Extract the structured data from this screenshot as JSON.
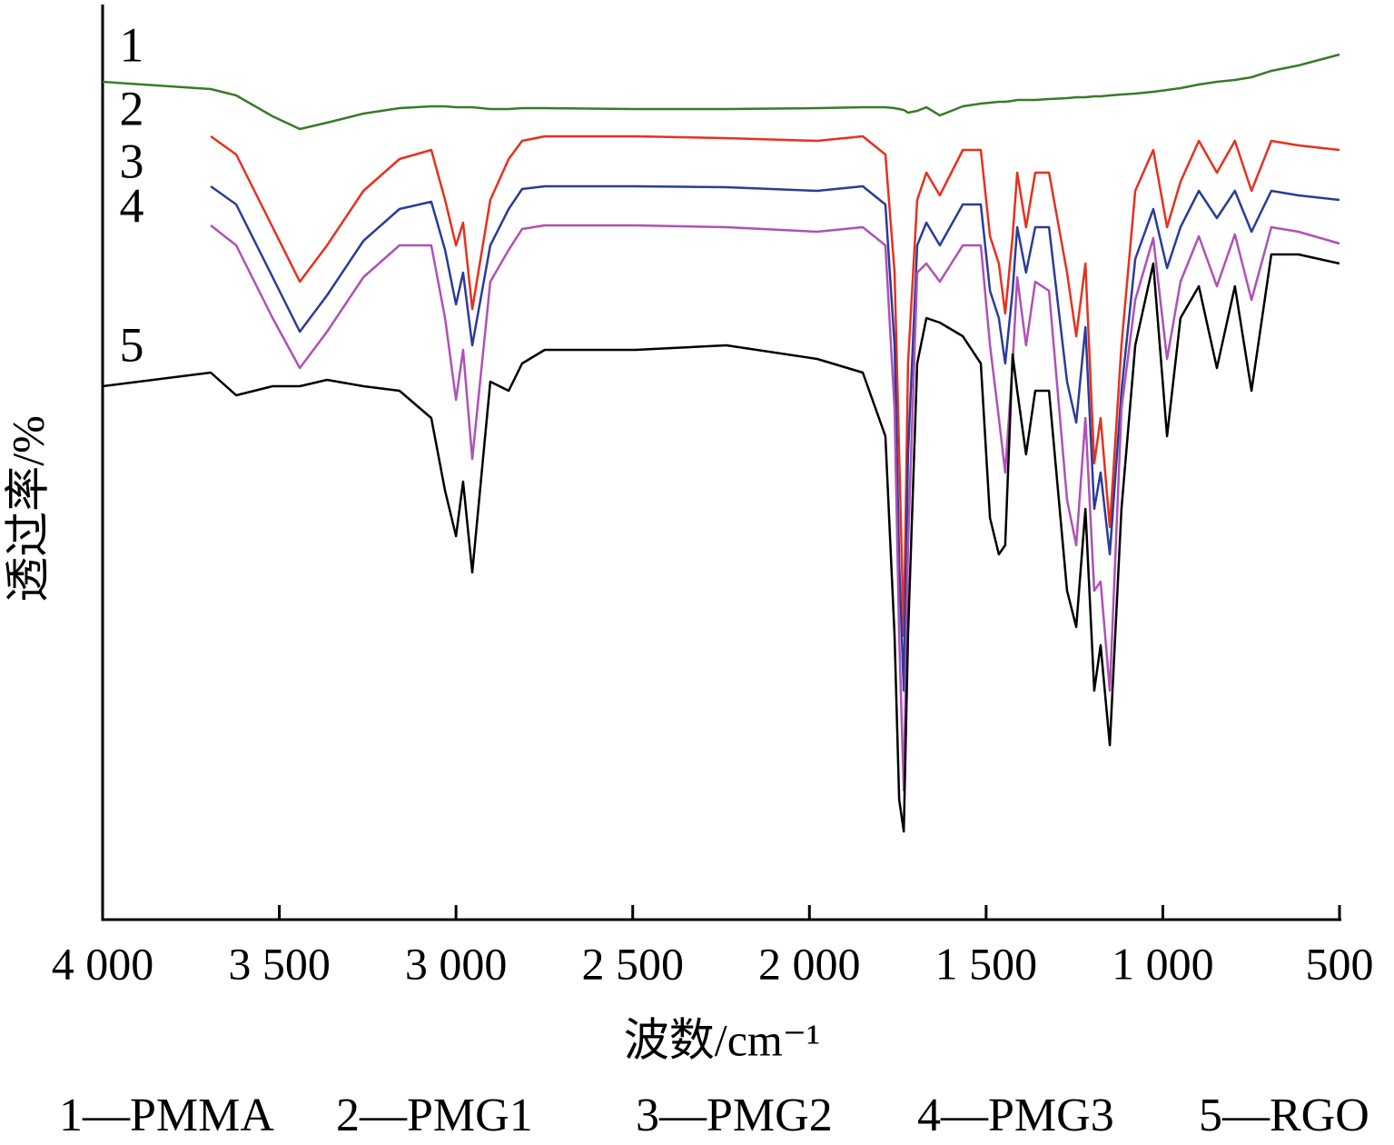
{
  "chart_data": {
    "type": "line",
    "xlabel": "波数/cm⁻¹",
    "ylabel": "透过率/%",
    "xlim": [
      4000,
      500
    ],
    "ylim": [
      0,
      100
    ],
    "xticks": [
      {
        "value": 4000,
        "label": "4 000"
      },
      {
        "value": 3500,
        "label": "3 500"
      },
      {
        "value": 3000,
        "label": "3 000"
      },
      {
        "value": 2500,
        "label": "2 500"
      },
      {
        "value": 2000,
        "label": "2 000"
      },
      {
        "value": 1500,
        "label": "1 500"
      },
      {
        "value": 1000,
        "label": "1 000"
      },
      500
    ],
    "x": [
      4000,
      3694,
      3622,
      3519,
      3442,
      3365,
      3262,
      3160,
      3070,
      3031,
      3000,
      2980,
      2954,
      2903,
      2851,
      2813,
      2749,
      2492,
      2235,
      1978,
      1849,
      1785,
      1759,
      1746,
      1733,
      1721,
      1695,
      1669,
      1631,
      1566,
      1515,
      1489,
      1464,
      1446,
      1425,
      1412,
      1387,
      1361,
      1322,
      1271,
      1245,
      1219,
      1194,
      1176,
      1150,
      1117,
      1078,
      1027,
      988,
      950,
      898,
      847,
      796,
      749,
      693,
      616,
      500
    ],
    "series": [
      {
        "name": "1—PMMA",
        "label": "1",
        "color": "#3a7a2a",
        "values": [
          92.0,
          91.2,
          90.5,
          88.2,
          86.8,
          87.5,
          88.5,
          89.1,
          89.3,
          89.3,
          89.2,
          89.2,
          89.2,
          89.0,
          89.0,
          89.1,
          89.1,
          89.0,
          89.0,
          89.1,
          89.2,
          89.2,
          89.1,
          89.0,
          88.9,
          88.6,
          88.8,
          89.2,
          88.3,
          89.3,
          89.6,
          89.7,
          89.8,
          89.8,
          89.9,
          90.0,
          90.0,
          90.0,
          90.1,
          90.2,
          90.3,
          90.3,
          90.4,
          90.4,
          90.5,
          90.6,
          90.7,
          90.9,
          91.1,
          91.3,
          91.7,
          92.0,
          92.2,
          92.5,
          93.2,
          93.8,
          95.0
        ]
      },
      {
        "name": "2—PMG1",
        "label": "2",
        "color": "#e8301e",
        "values": [
          null,
          86.0,
          84.0,
          76.0,
          70.0,
          74.0,
          80.0,
          83.5,
          84.5,
          79.0,
          74.0,
          76.5,
          67.0,
          79.0,
          83.5,
          85.5,
          86.0,
          86.0,
          85.8,
          85.5,
          86.0,
          84.0,
          71.0,
          51.0,
          31.0,
          61.0,
          79.0,
          82.0,
          79.5,
          84.5,
          84.5,
          75.0,
          72.0,
          66.5,
          75.0,
          82.0,
          76.0,
          82.0,
          82.0,
          71.0,
          64.0,
          72.0,
          50.0,
          55.0,
          43.0,
          63.0,
          80.0,
          84.5,
          76.0,
          81.0,
          85.5,
          82.0,
          85.5,
          80.0,
          85.5,
          85.0,
          84.5
        ]
      },
      {
        "name": "3—PMG2",
        "label": "3",
        "color": "#2a3c9a",
        "values": [
          null,
          80.5,
          78.5,
          70.5,
          64.5,
          68.5,
          74.5,
          78.0,
          78.8,
          73.5,
          67.5,
          71.0,
          63.0,
          74.0,
          78.0,
          80.2,
          80.5,
          80.5,
          80.4,
          80.0,
          80.5,
          78.5,
          63.0,
          39.0,
          25.0,
          51.0,
          74.0,
          76.5,
          74.0,
          78.5,
          78.5,
          69.0,
          66.0,
          61.0,
          69.0,
          76.0,
          71.0,
          76.0,
          76.0,
          59.0,
          54.5,
          65.0,
          45.0,
          49.0,
          40.0,
          58.0,
          72.5,
          78.0,
          71.5,
          76.0,
          80.0,
          77.0,
          80.0,
          75.5,
          80.0,
          79.5,
          79.0
        ]
      },
      {
        "name": "4—PMG3",
        "label": "4",
        "color": "#b050b8",
        "values": [
          null,
          76.2,
          74.0,
          66.0,
          60.5,
          64.5,
          70.5,
          74.0,
          74.0,
          66.0,
          57.0,
          62.5,
          50.5,
          70.0,
          73.5,
          75.8,
          76.2,
          76.2,
          76.0,
          75.5,
          76.0,
          74.0,
          56.0,
          31.0,
          14.0,
          41.0,
          71.0,
          72.0,
          70.0,
          74.0,
          74.0,
          63.0,
          55.0,
          49.0,
          61.0,
          70.5,
          63.0,
          70.0,
          69.0,
          46.0,
          41.0,
          55.0,
          36.0,
          37.0,
          25.0,
          56.0,
          68.0,
          74.8,
          61.5,
          70.0,
          75.0,
          69.5,
          75.2,
          68.0,
          76.0,
          75.5,
          74.2
        ]
      },
      {
        "name": "5—RGO",
        "label": "5",
        "color": "#000000",
        "values": [
          58.5,
          60.0,
          57.5,
          58.5,
          58.5,
          59.2,
          58.5,
          58.0,
          55.0,
          47.0,
          42.0,
          48.0,
          38.0,
          59.0,
          58.0,
          61.0,
          62.5,
          62.5,
          63.0,
          61.5,
          60.0,
          53.0,
          31.0,
          13.0,
          9.5,
          31.0,
          61.0,
          66.0,
          65.5,
          64.0,
          61.0,
          44.0,
          40.0,
          41.0,
          62.0,
          58.0,
          51.0,
          58.0,
          58.0,
          36.0,
          32.0,
          45.0,
          25.0,
          30.0,
          19.0,
          45.0,
          63.0,
          72.0,
          53.0,
          66.0,
          69.5,
          60.5,
          69.5,
          58.0,
          73.0,
          73.0,
          72.0
        ]
      }
    ]
  }
}
